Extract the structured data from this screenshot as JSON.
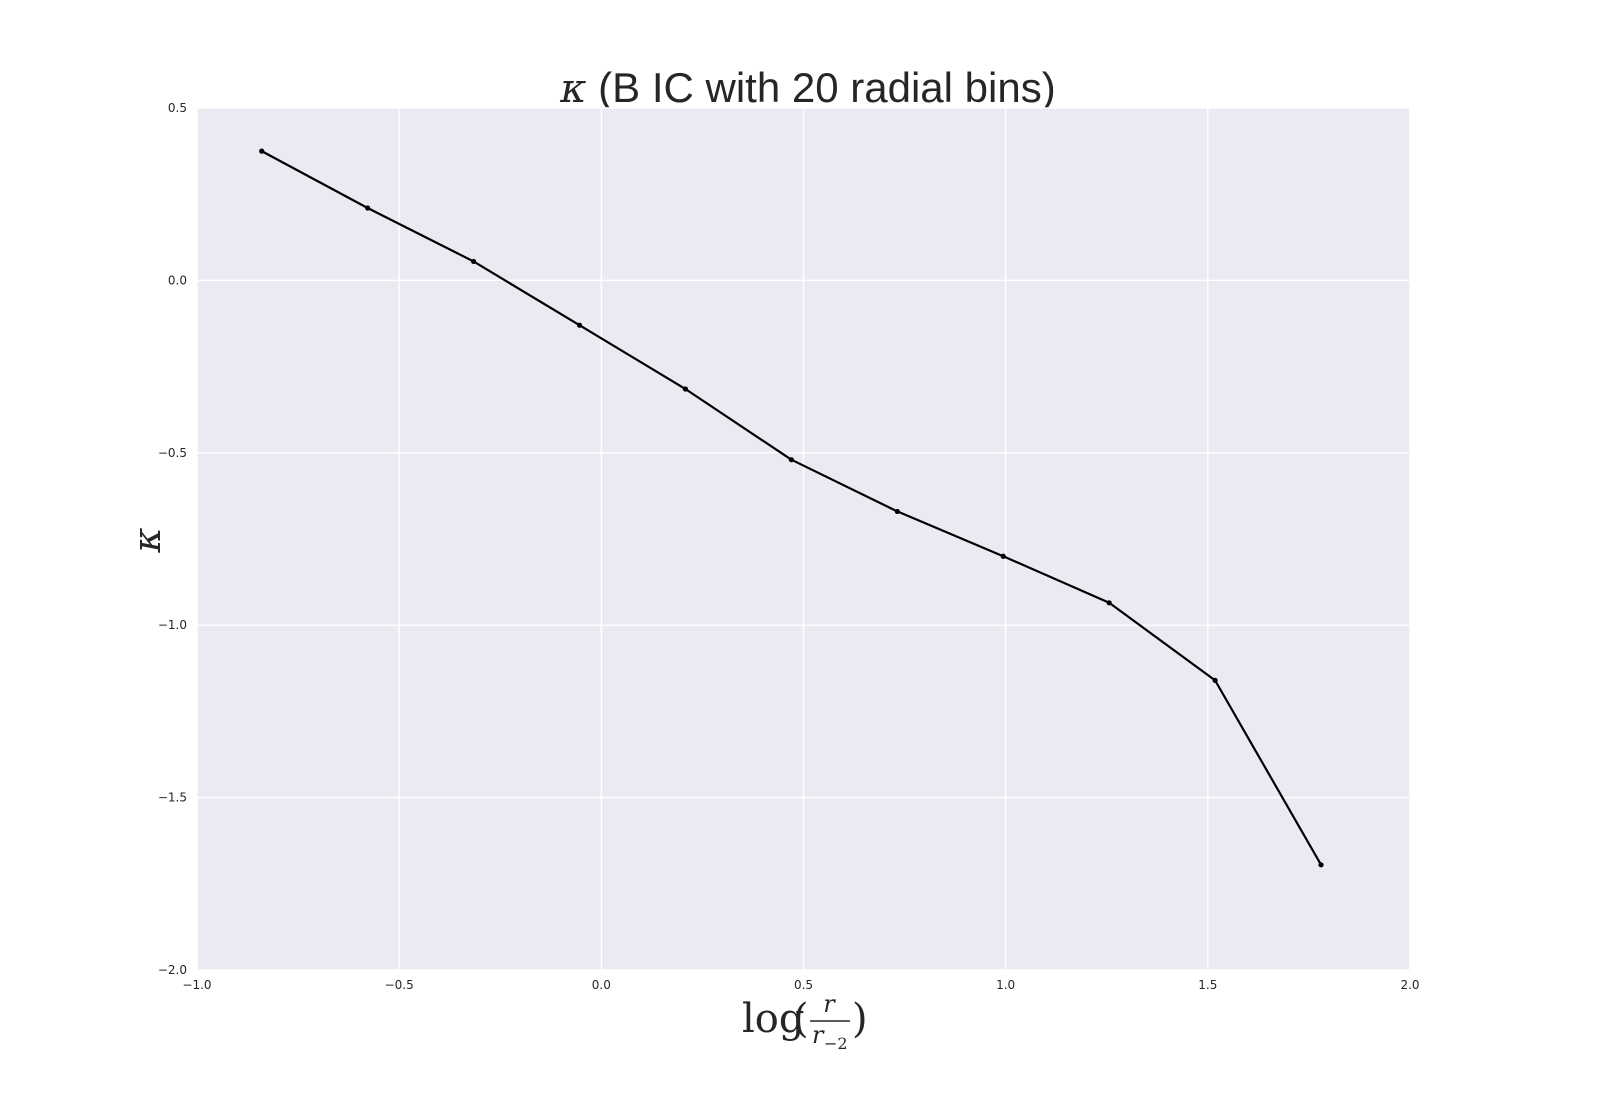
{
  "chart_data": {
    "type": "line",
    "title_symbol": "κ",
    "title_rest": " (B IC with 20 radial bins)",
    "ylabel": "κ",
    "xlabel": {
      "func": "log",
      "open": "(",
      "close": ")",
      "numerator": "r",
      "denominator": "r",
      "denominator_subscript": "−2"
    },
    "xlim": [
      -1.0,
      2.0
    ],
    "ylim": [
      -2.0,
      0.5
    ],
    "xticks": [
      -1.0,
      -0.5,
      0.0,
      0.5,
      1.0,
      1.5,
      2.0
    ],
    "xtick_labels": [
      "−1.0",
      "−0.5",
      "0.0",
      "0.5",
      "1.0",
      "1.5",
      "2.0"
    ],
    "yticks": [
      -2.0,
      -1.5,
      -1.0,
      -0.5,
      0.0,
      0.5
    ],
    "ytick_labels": [
      "−2.0",
      "−1.5",
      "−1.0",
      "−0.5",
      "0.0",
      "0.5"
    ],
    "grid": true,
    "colors": {
      "background": "#eaeaf2",
      "grid": "#ffffff",
      "line": "#000000",
      "text": "#262626"
    },
    "series": [
      {
        "x": [
          -0.84,
          -0.578,
          -0.316,
          -0.054,
          0.208,
          0.47,
          0.732,
          0.994,
          1.256,
          1.518,
          1.78
        ],
        "y": [
          0.375,
          0.21,
          0.055,
          -0.13,
          -0.315,
          -0.52,
          -0.67,
          -0.8,
          -0.935,
          -1.16,
          -1.695
        ]
      }
    ]
  }
}
